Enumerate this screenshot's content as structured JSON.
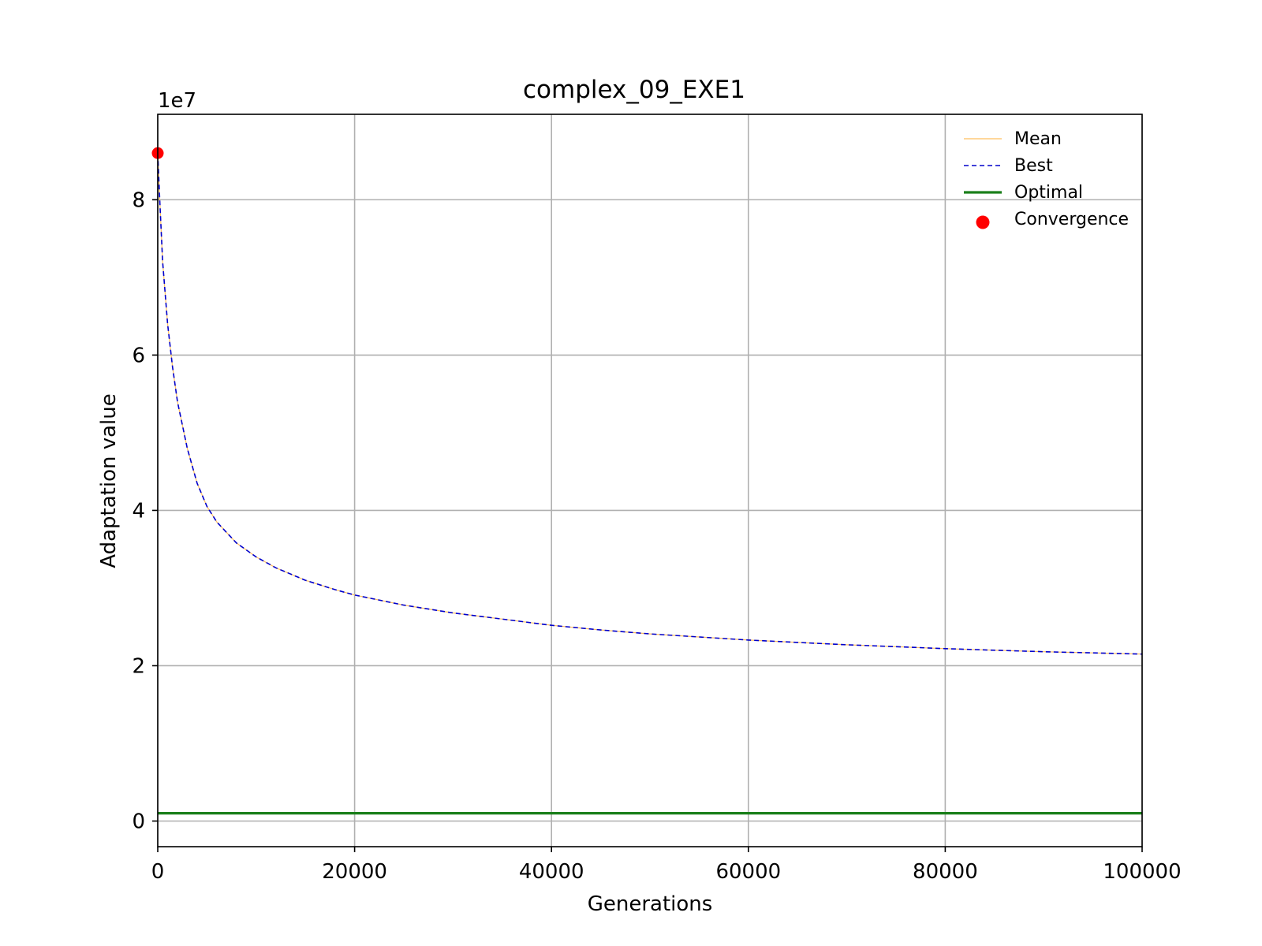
{
  "chart_data": {
    "type": "line",
    "title": "complex_09_EXE1",
    "xlabel": "Generations",
    "ylabel": "Adaptation value",
    "y_offset_label": "1e7",
    "xlim": [
      0,
      100000
    ],
    "ylim": [
      -3300000,
      91000000
    ],
    "x_ticks": [
      0,
      20000,
      40000,
      60000,
      80000,
      100000
    ],
    "x_tick_labels": [
      "0",
      "20000",
      "40000",
      "60000",
      "80000",
      "100000"
    ],
    "y_ticks": [
      0,
      20000000,
      40000000,
      60000000,
      80000000
    ],
    "y_tick_labels": [
      "0",
      "2",
      "4",
      "6",
      "8"
    ],
    "grid": true,
    "legend_position": "top-right",
    "series": [
      {
        "name": "Mean",
        "color": "#ffbf5f",
        "style": "solid",
        "x": [
          0,
          200,
          500,
          1000,
          1500,
          2000,
          3000,
          4000,
          5000,
          6000,
          8000,
          10000,
          12000,
          15000,
          18000,
          20000,
          25000,
          30000,
          35000,
          40000,
          45000,
          50000,
          55000,
          60000,
          65000,
          70000,
          75000,
          80000,
          85000,
          90000,
          95000,
          100000
        ],
        "values": [
          86000000,
          80000000,
          72000000,
          64000000,
          58500000,
          54000000,
          48000000,
          43500000,
          40500000,
          38500000,
          35800000,
          34000000,
          32600000,
          31000000,
          29800000,
          29100000,
          27800000,
          26800000,
          26000000,
          25200000,
          24600000,
          24100000,
          23700000,
          23300000,
          23000000,
          22700000,
          22450000,
          22200000,
          22000000,
          21800000,
          21650000,
          21500000
        ]
      },
      {
        "name": "Best",
        "color": "#0000cc",
        "style": "dashed",
        "x": [
          0,
          200,
          500,
          1000,
          1500,
          2000,
          3000,
          4000,
          5000,
          6000,
          8000,
          10000,
          12000,
          15000,
          18000,
          20000,
          25000,
          30000,
          35000,
          40000,
          45000,
          50000,
          55000,
          60000,
          65000,
          70000,
          75000,
          80000,
          85000,
          90000,
          95000,
          100000
        ],
        "values": [
          86000000,
          80000000,
          72000000,
          64000000,
          58500000,
          54000000,
          48000000,
          43500000,
          40500000,
          38500000,
          35800000,
          34000000,
          32600000,
          31000000,
          29800000,
          29100000,
          27800000,
          26800000,
          26000000,
          25200000,
          24600000,
          24100000,
          23700000,
          23300000,
          23000000,
          22700000,
          22450000,
          22200000,
          22000000,
          21800000,
          21650000,
          21500000
        ]
      },
      {
        "name": "Optimal",
        "color": "#1a7f1a",
        "style": "solid",
        "x": [
          0,
          100000
        ],
        "values": [
          1000000,
          1000000
        ]
      }
    ],
    "points": [
      {
        "name": "Convergence",
        "color": "#ff0000",
        "x": 0,
        "y": 86000000
      }
    ]
  }
}
